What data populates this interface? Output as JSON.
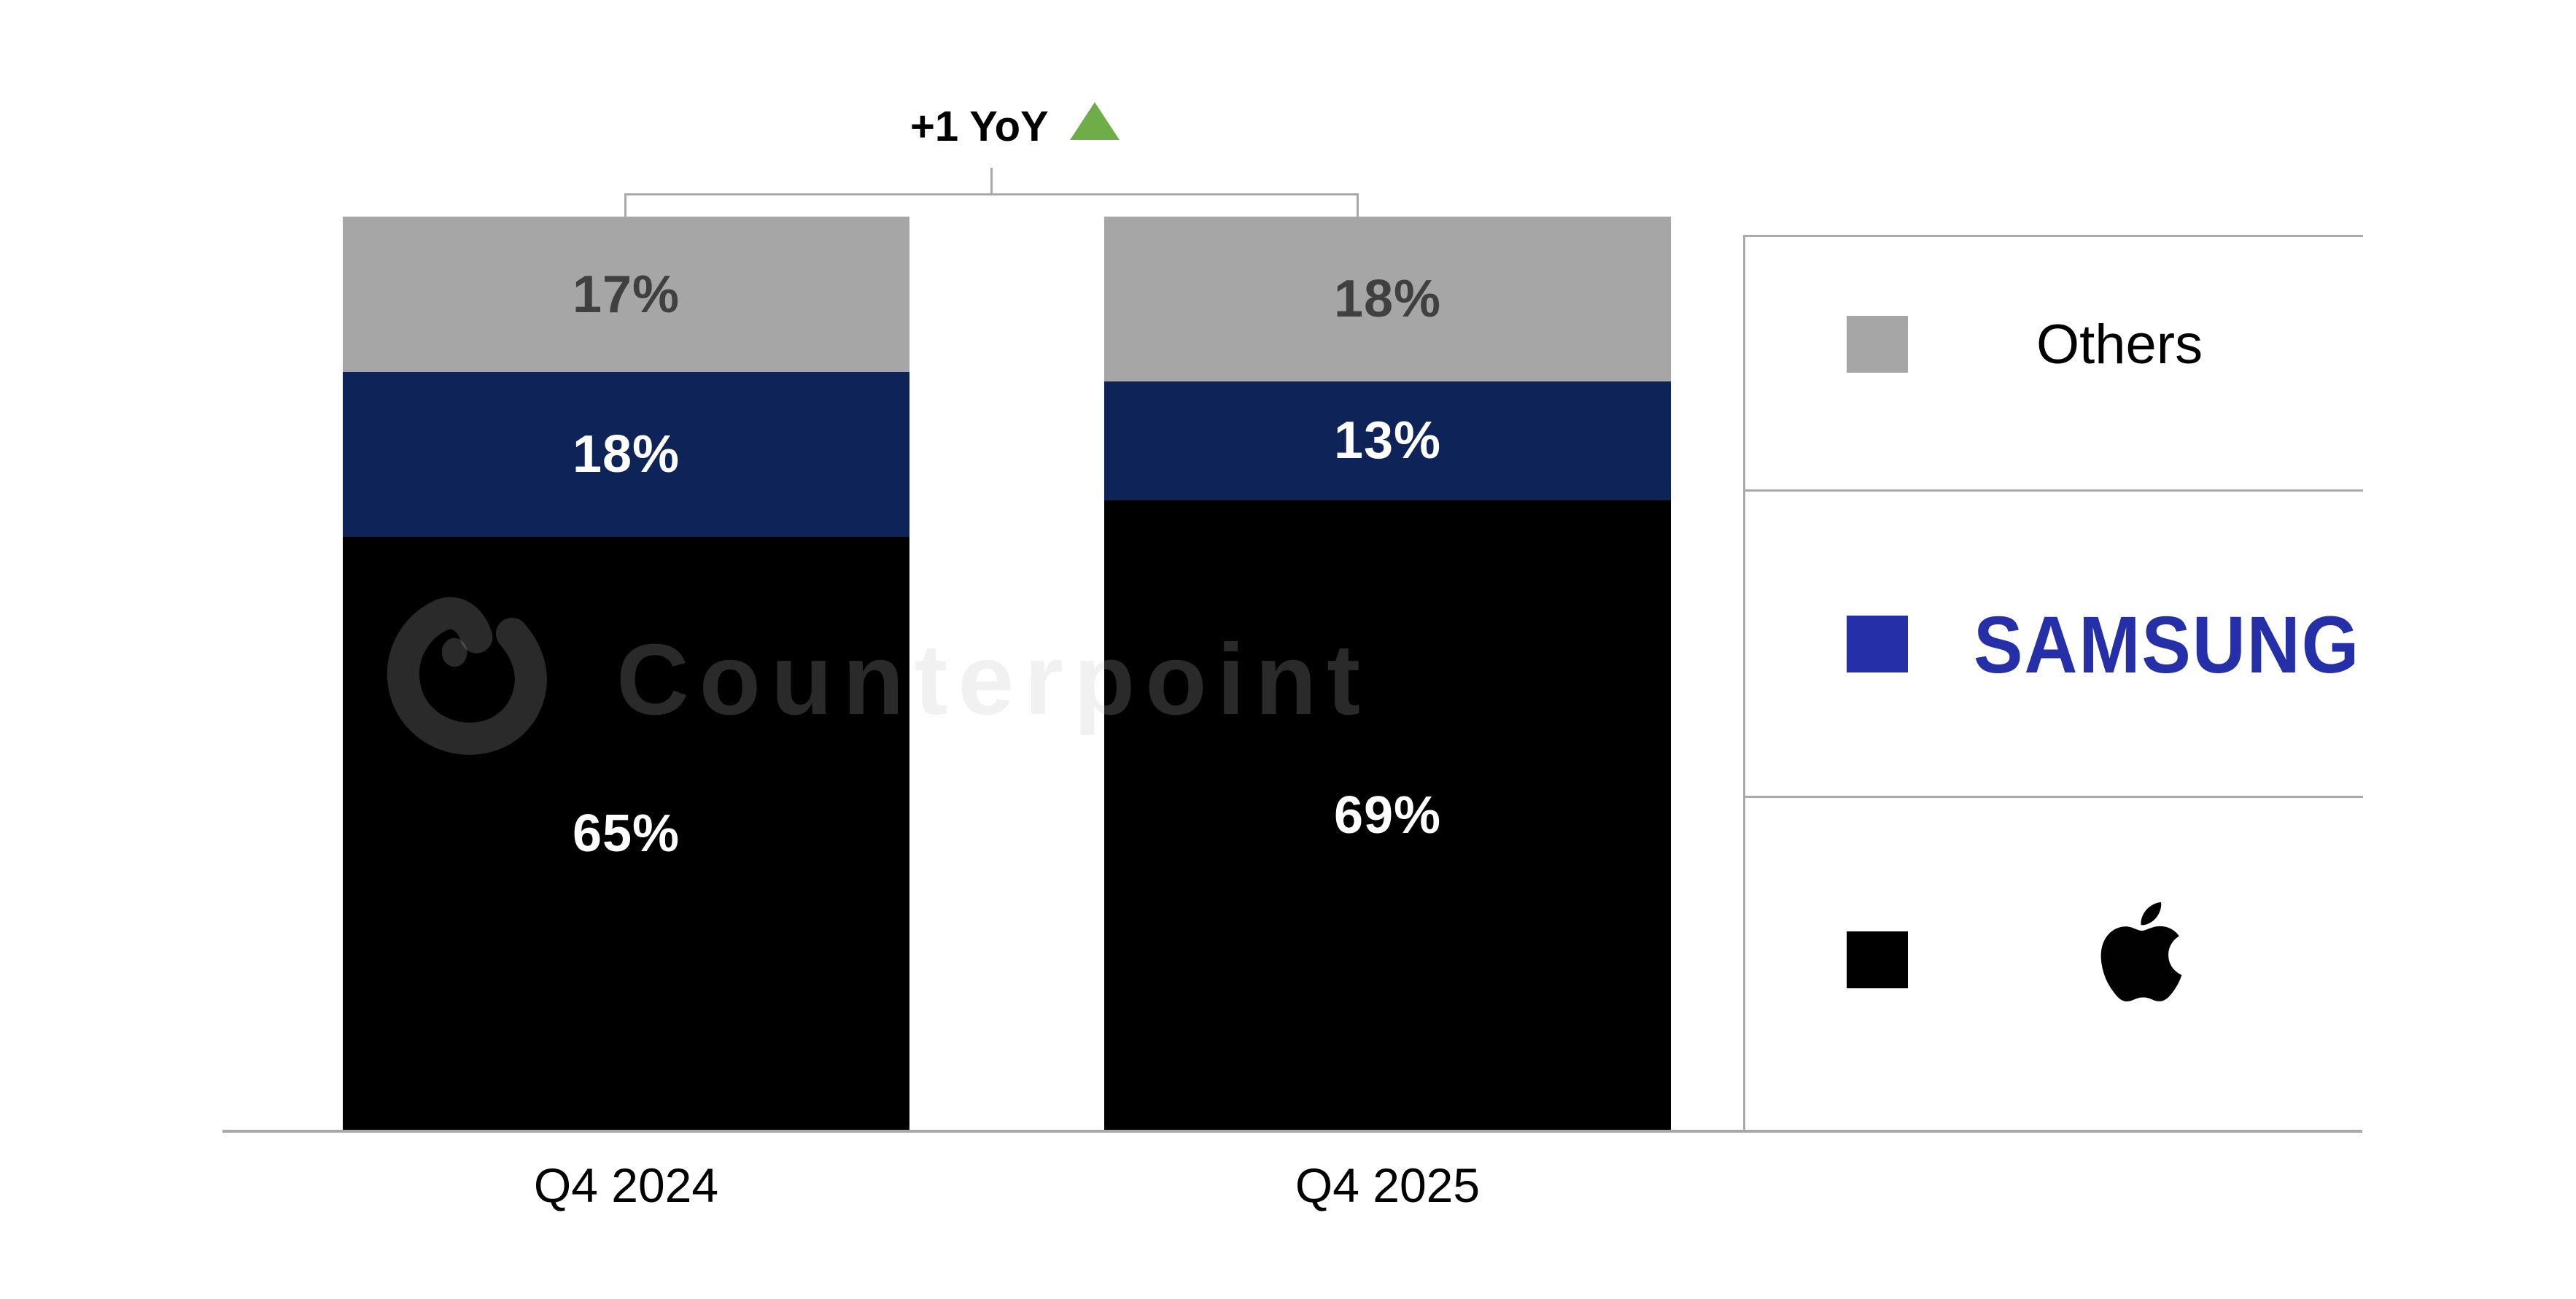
{
  "watermark": {
    "text": "Counterpoint"
  },
  "annotation": {
    "text": "+1 YoY",
    "direction": "up",
    "triangle_color": "#6fad49"
  },
  "axis": {
    "baseline_color": "#a9a9a9",
    "bracket_color": "#a9a9a9"
  },
  "chart_data": {
    "type": "bar",
    "subtype": "stacked-100",
    "title": "",
    "categories": [
      "Q4 2024",
      "Q4 2025"
    ],
    "series": [
      {
        "name": "Others",
        "color": "#a6a6a6",
        "label_color": "#404040",
        "values": [
          17,
          18
        ]
      },
      {
        "name": "Samsung",
        "color": "#0e2357",
        "label_color": "#ffffff",
        "values": [
          18,
          13
        ]
      },
      {
        "name": "Apple",
        "color": "#000000",
        "label_color": "#ffffff",
        "values": [
          65,
          69
        ]
      }
    ],
    "stack_order_top_to_bottom": [
      "Others",
      "Samsung",
      "Apple"
    ],
    "value_suffix": "%",
    "ylim": [
      0,
      100
    ],
    "grid": false,
    "legend_position": "right",
    "annotations": [
      {
        "text": "+1 YoY",
        "applies_to": "Others",
        "symbol": "up-triangle"
      }
    ]
  },
  "legend": {
    "items": [
      {
        "label": "Others",
        "swatch": "#a6a6a6",
        "display": "text"
      },
      {
        "label": "SAMSUNG",
        "swatch": "#252fa8",
        "display": "samsung-wordmark",
        "color": "#252fa8"
      },
      {
        "label": "Apple",
        "swatch": "#000000",
        "display": "apple-logo"
      }
    ],
    "border_color": "#a9a9a9"
  }
}
